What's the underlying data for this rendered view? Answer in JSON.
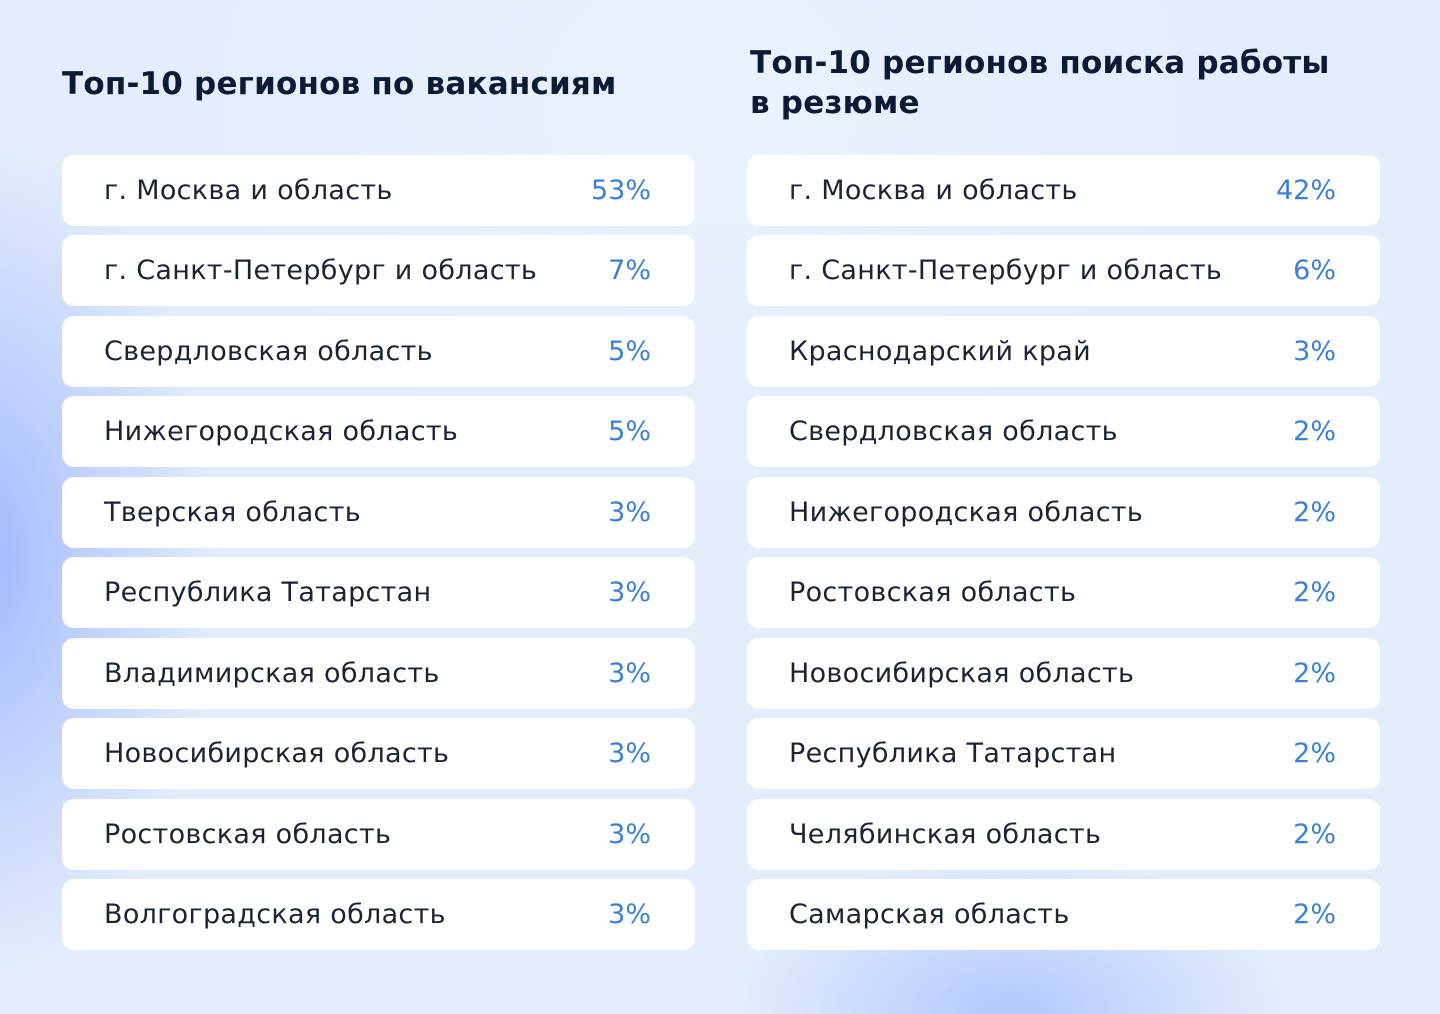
{
  "vacancies": {
    "title": "Топ-10 регионов по вакансиям",
    "rows": [
      {
        "region": "г. Москва и область",
        "value": "53%"
      },
      {
        "region": "г. Санкт-Петербург и область",
        "value": "7%"
      },
      {
        "region": "Свердловская область",
        "value": "5%"
      },
      {
        "region": "Нижегородская область",
        "value": "5%"
      },
      {
        "region": "Тверская область",
        "value": "3%"
      },
      {
        "region": "Республика Татарстан",
        "value": "3%"
      },
      {
        "region": "Владимирская область",
        "value": "3%"
      },
      {
        "region": "Новосибирская область",
        "value": "3%"
      },
      {
        "region": "Ростовская область",
        "value": "3%"
      },
      {
        "region": "Волгоградская область",
        "value": "3%"
      }
    ]
  },
  "resumes": {
    "title_line1": "Топ-10 регионов поиска работы",
    "title_line2": "в резюме",
    "rows": [
      {
        "region": "г. Москва и область",
        "value": "42%"
      },
      {
        "region": "г. Санкт-Петербург и область",
        "value": "6%"
      },
      {
        "region": "Краснодарский край",
        "value": "3%"
      },
      {
        "region": "Свердловская область",
        "value": "2%"
      },
      {
        "region": "Нижегородская область",
        "value": "2%"
      },
      {
        "region": "Ростовская область",
        "value": "2%"
      },
      {
        "region": "Новосибирская область",
        "value": "2%"
      },
      {
        "region": "Республика Татарстан",
        "value": "2%"
      },
      {
        "region": "Челябинская область",
        "value": "2%"
      },
      {
        "region": "Самарская область",
        "value": "2%"
      }
    ]
  },
  "colors": {
    "background": "#e3edfc",
    "card": "#ffffff",
    "title": "#0d1a33",
    "label": "#1c2333",
    "value": "#3b7fd8"
  }
}
